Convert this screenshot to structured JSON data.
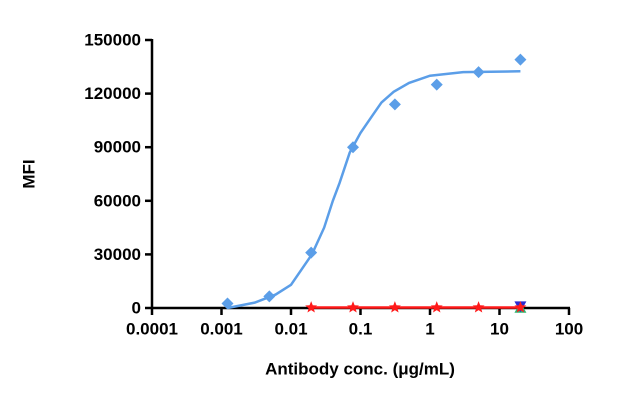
{
  "chart_data": {
    "type": "scatter",
    "xscale": "log",
    "xlabel": "Antibody conc. (μg/mL)",
    "ylabel": "MFI",
    "xlim": [
      0.0001,
      100
    ],
    "xticks": [
      0.0001,
      0.001,
      0.01,
      0.1,
      1,
      10,
      100
    ],
    "ylim": [
      0,
      150000
    ],
    "yticks": [
      0,
      30000,
      60000,
      90000,
      120000,
      150000
    ],
    "series": [
      {
        "mark": "line",
        "color": "#5b9ee8",
        "x": [
          0.00122,
          0.003,
          0.006,
          0.01,
          0.02,
          0.03,
          0.04,
          0.05,
          0.07,
          0.1,
          0.15,
          0.2,
          0.3,
          0.5,
          1,
          3,
          20
        ],
        "values": [
          0,
          3000,
          7500,
          13000,
          30000,
          45000,
          60000,
          70000,
          87000,
          98000,
          108000,
          115000,
          121000,
          126000,
          130000,
          132000,
          132500
        ]
      },
      {
        "mark": "diamond",
        "color": "#5b9ee8",
        "x": [
          0.00122,
          0.00488,
          0.0195,
          0.078,
          0.3125,
          1.25,
          5,
          20
        ],
        "values": [
          2500,
          6500,
          31000,
          90000,
          114000,
          125000,
          132000,
          139000
        ]
      },
      {
        "mark": "triangle-up",
        "color": "#2bb673",
        "x": [
          20
        ],
        "values": [
          0
        ]
      },
      {
        "mark": "triangle-down",
        "color": "#2a2ad0",
        "x": [
          20
        ],
        "values": [
          1000
        ]
      },
      {
        "mark": "star",
        "color": "#ff1a1a",
        "line": true,
        "x": [
          0.0195,
          0.078,
          0.3125,
          1.25,
          5,
          20
        ],
        "values": [
          300,
          300,
          300,
          300,
          300,
          300
        ]
      }
    ]
  }
}
